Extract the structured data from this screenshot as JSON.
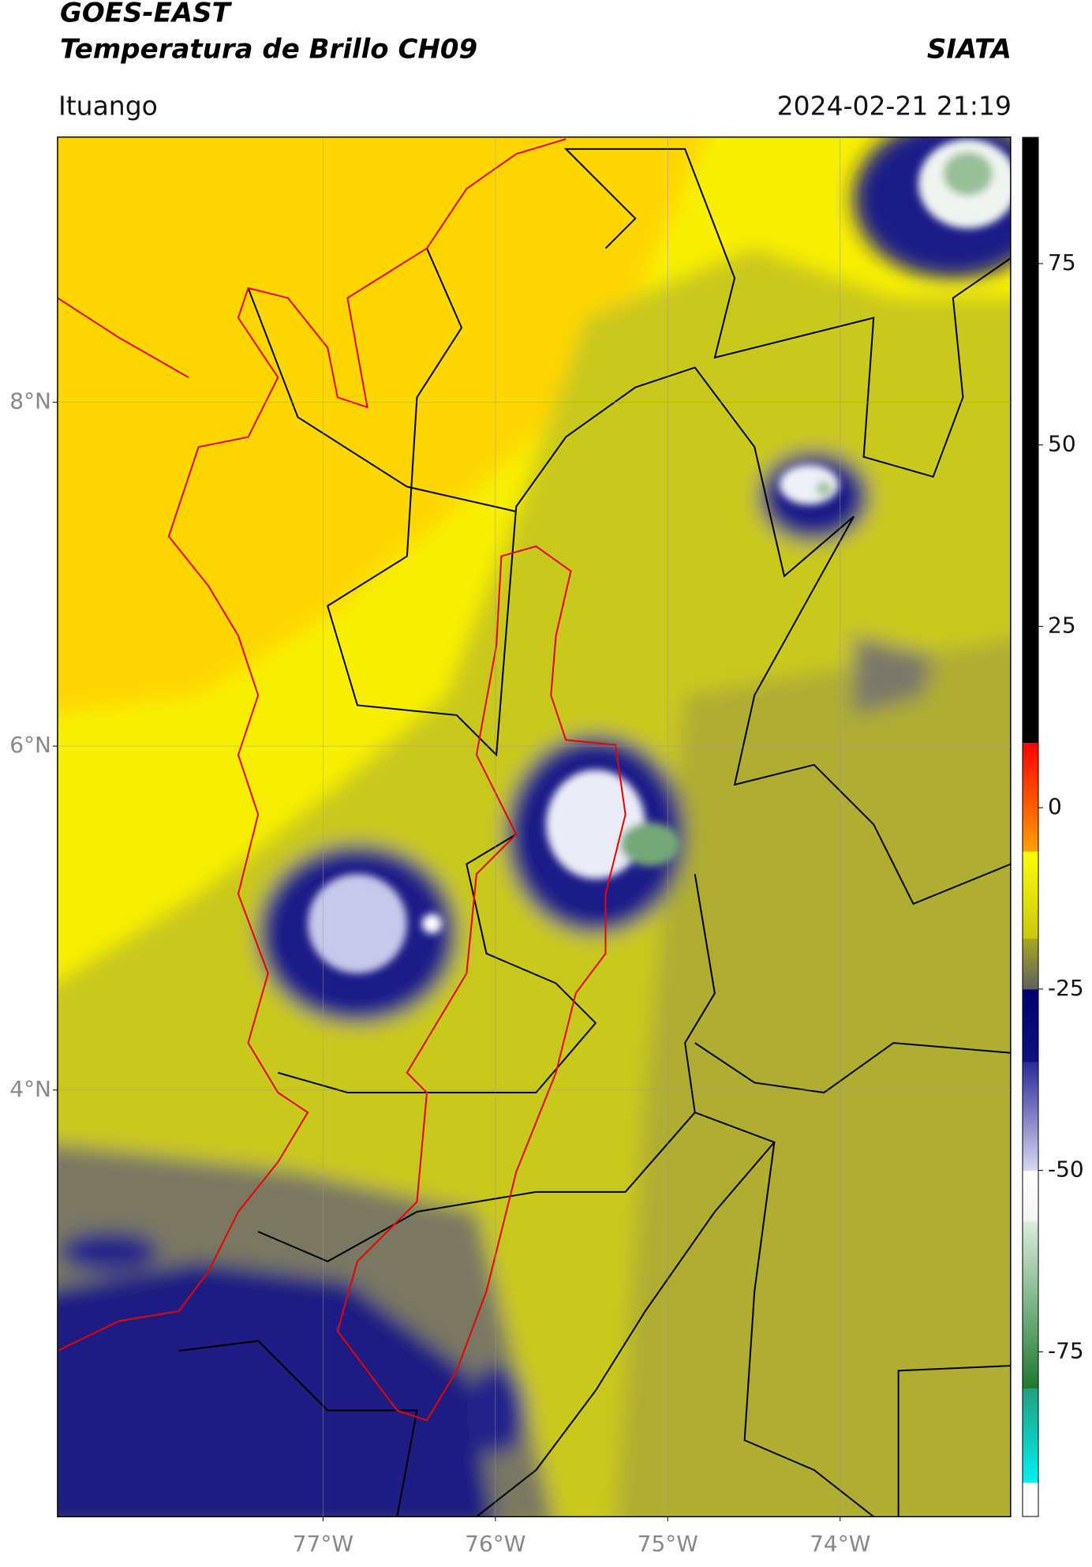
{
  "header": {
    "title": "GOES-EAST",
    "subtitle": "Temperatura de Brillo CH09",
    "source": "SIATA",
    "location": "Ituango",
    "datetime": "2024-02-21 21:19"
  },
  "map": {
    "xlim": [
      -78.54,
      -73.01
    ],
    "ylim": [
      1.52,
      9.54
    ],
    "xticks": [
      {
        "value": -77,
        "label": "77°W"
      },
      {
        "value": -76,
        "label": "76°W"
      },
      {
        "value": -75,
        "label": "75°W"
      },
      {
        "value": -74,
        "label": "74°W"
      }
    ],
    "yticks": [
      {
        "value": 8,
        "label": "8°N"
      },
      {
        "value": 6,
        "label": "6°N"
      },
      {
        "value": 4,
        "label": "4°N"
      }
    ],
    "grid": true
  },
  "colorbar": {
    "lim": [
      -97.7,
      92.4
    ],
    "ticks": [
      75,
      50,
      25,
      0,
      -25,
      -50,
      -75
    ],
    "segments": [
      {
        "from": -97.7,
        "to": -93,
        "color_from": "#ffffff",
        "color_to": "#ffffff"
      },
      {
        "from": -93,
        "to": -80,
        "color_from": "#00f0f0",
        "color_to": "#20a080"
      },
      {
        "from": -80,
        "to": -57,
        "color_from": "#1e7a30",
        "color_to": "#dcecdc"
      },
      {
        "from": -57,
        "to": -50,
        "color_from": "#f4f4f4",
        "color_to": "#ffffff"
      },
      {
        "from": -50,
        "to": -35,
        "color_from": "#d8d8f0",
        "color_to": "#2a2a9a"
      },
      {
        "from": -35,
        "to": -25,
        "color_from": "#10107e",
        "color_to": "#000070"
      },
      {
        "from": -25,
        "to": -18,
        "color_from": "#606060",
        "color_to": "#a8a820"
      },
      {
        "from": -18,
        "to": -6,
        "color_from": "#c8c810",
        "color_to": "#ffff00"
      },
      {
        "from": -6,
        "to": 9,
        "color_from": "#ffa000",
        "color_to": "#ff0000"
      },
      {
        "from": 9,
        "to": 92.4,
        "color_from": "#000000",
        "color_to": "#000000"
      }
    ]
  }
}
